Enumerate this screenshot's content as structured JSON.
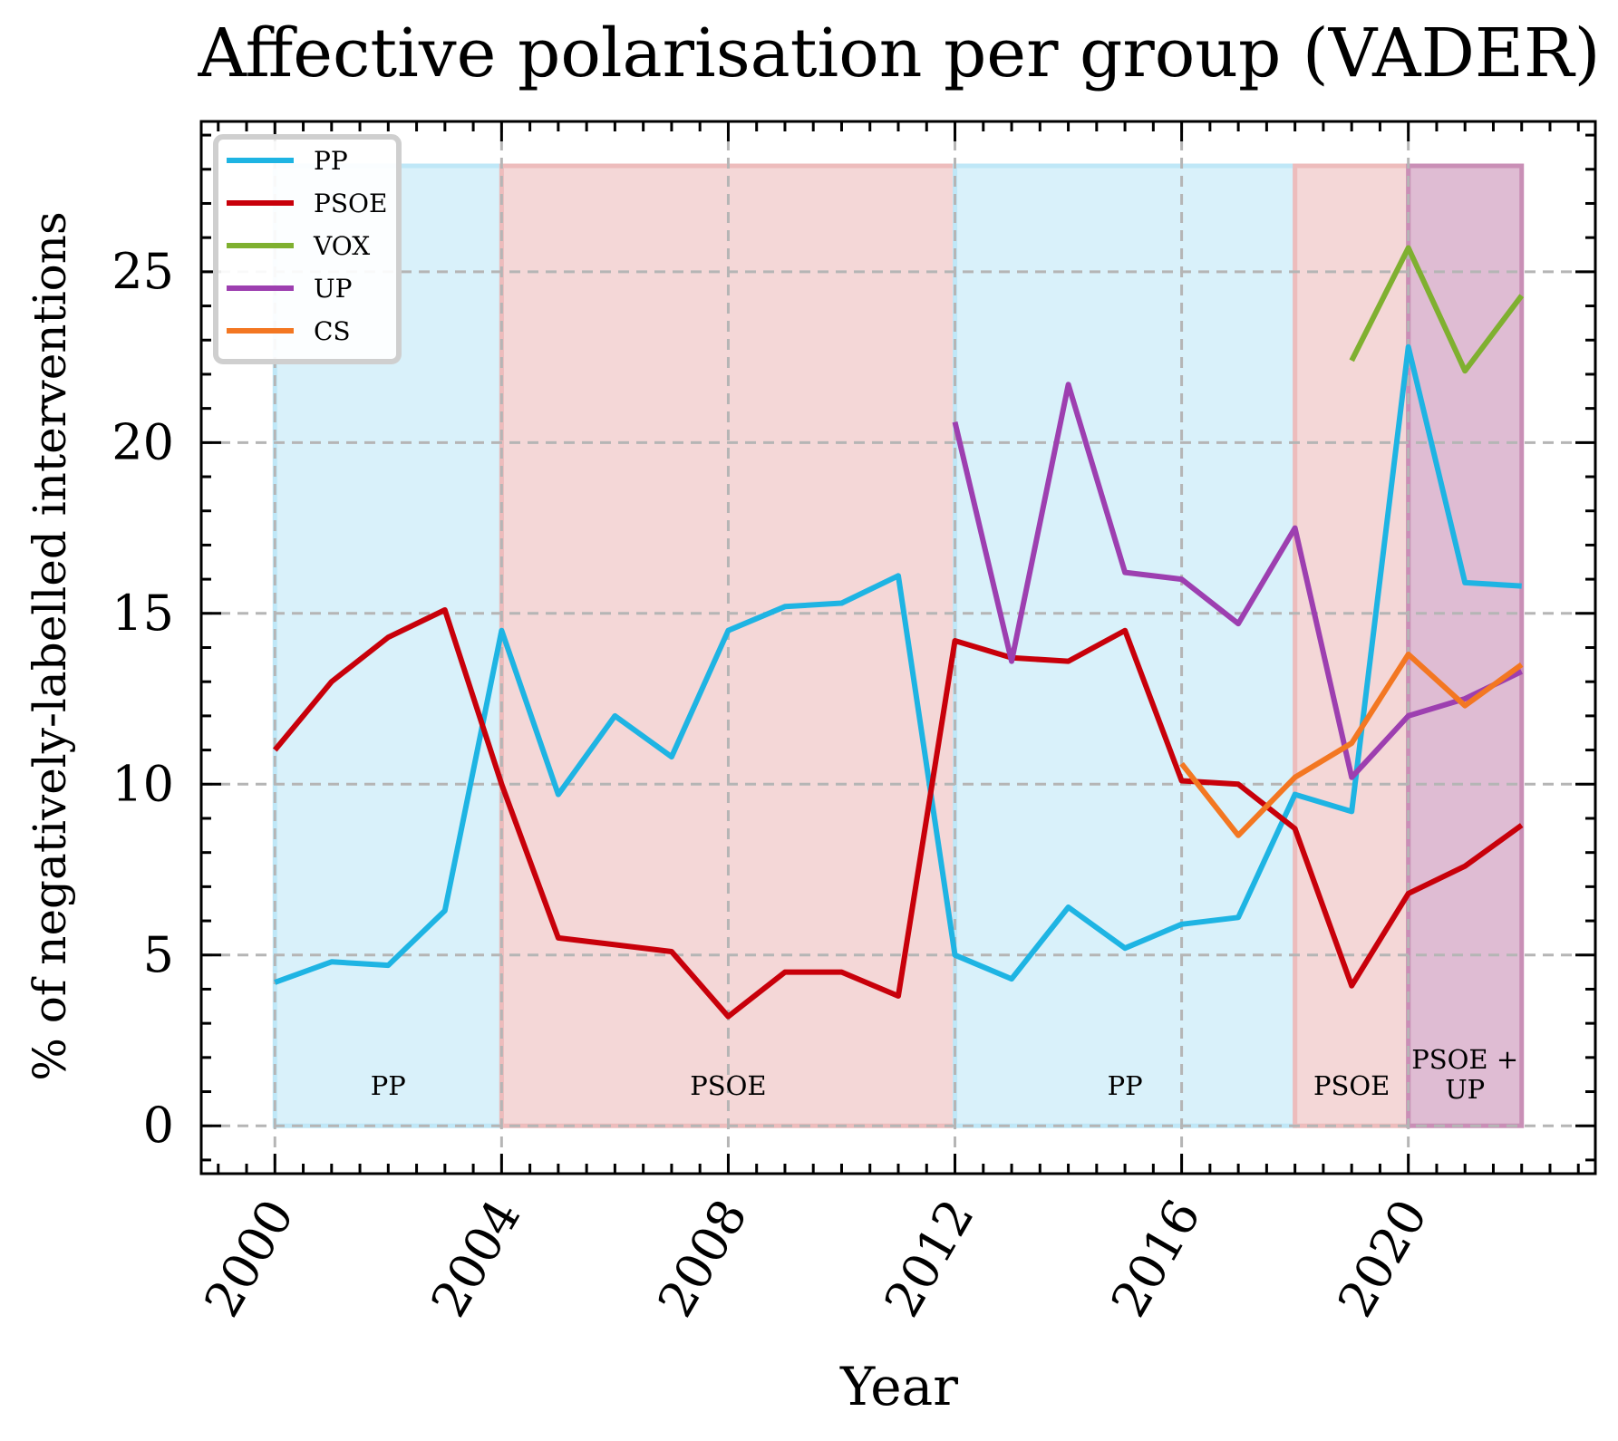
{
  "chart_data": {
    "type": "line",
    "title": "Affective polarisation per group (VADER)",
    "xlabel": "Year",
    "ylabel": "% of negatively-labelled interventions",
    "xlim": [
      1998.7,
      2023.3
    ],
    "ylim": [
      -1.4,
      29.4
    ],
    "xticks": [
      2000,
      2004,
      2008,
      2012,
      2016,
      2020
    ],
    "yticks": [
      0,
      5,
      10,
      15,
      20,
      25
    ],
    "grid": true,
    "legend_position": "top-left",
    "x": [
      2000,
      2001,
      2002,
      2003,
      2004,
      2005,
      2006,
      2007,
      2008,
      2009,
      2010,
      2011,
      2012,
      2013,
      2014,
      2015,
      2016,
      2017,
      2018,
      2019,
      2020,
      2021,
      2022
    ],
    "series": [
      {
        "name": "PP",
        "color": "#1eb4e3",
        "values": [
          4.2,
          4.8,
          4.7,
          6.3,
          14.5,
          9.7,
          12.0,
          10.8,
          14.5,
          15.2,
          15.3,
          16.1,
          5.0,
          4.3,
          6.4,
          5.2,
          5.9,
          6.1,
          9.7,
          9.2,
          22.8,
          15.9,
          15.8
        ]
      },
      {
        "name": "PSOE",
        "color": "#c8000a",
        "values": [
          11.0,
          13.0,
          14.3,
          15.1,
          10.0,
          5.5,
          5.3,
          5.1,
          3.2,
          4.5,
          4.5,
          3.8,
          14.2,
          13.7,
          13.6,
          14.5,
          10.1,
          10.0,
          8.7,
          4.1,
          6.8,
          7.6,
          8.8
        ]
      },
      {
        "name": "VOX",
        "color": "#7fb030",
        "values": [
          null,
          null,
          null,
          null,
          null,
          null,
          null,
          null,
          null,
          null,
          null,
          null,
          null,
          null,
          null,
          null,
          null,
          null,
          null,
          22.4,
          25.7,
          22.1,
          24.3
        ]
      },
      {
        "name": "UP",
        "color": "#9d3fb0",
        "values": [
          null,
          null,
          null,
          null,
          null,
          null,
          null,
          null,
          null,
          null,
          null,
          null,
          20.6,
          13.6,
          21.7,
          16.2,
          16.0,
          14.7,
          17.5,
          10.2,
          12.0,
          12.5,
          13.3
        ]
      },
      {
        "name": "CS",
        "color": "#f37722",
        "values": [
          null,
          null,
          null,
          null,
          null,
          null,
          null,
          null,
          null,
          null,
          null,
          null,
          null,
          null,
          null,
          null,
          10.6,
          8.5,
          10.2,
          11.2,
          13.8,
          12.3,
          13.5
        ]
      }
    ],
    "government_periods": [
      {
        "label": "PP",
        "start": 2000,
        "end": 2004,
        "color": "#bfe7f7"
      },
      {
        "label": "PSOE",
        "start": 2004,
        "end": 2012,
        "color": "#edbcbc"
      },
      {
        "label": "PP",
        "start": 2012,
        "end": 2018,
        "color": "#bfe7f7"
      },
      {
        "label": "PSOE",
        "start": 2018,
        "end": 2020,
        "color": "#edbcbc"
      },
      {
        "label": "PSOE + UP",
        "label_lines": [
          "PSOE +",
          "UP"
        ],
        "start": 2020,
        "end": 2022,
        "color": "#c98fb6"
      }
    ],
    "period_band_top": 28.1,
    "period_label_y": 1.2
  }
}
